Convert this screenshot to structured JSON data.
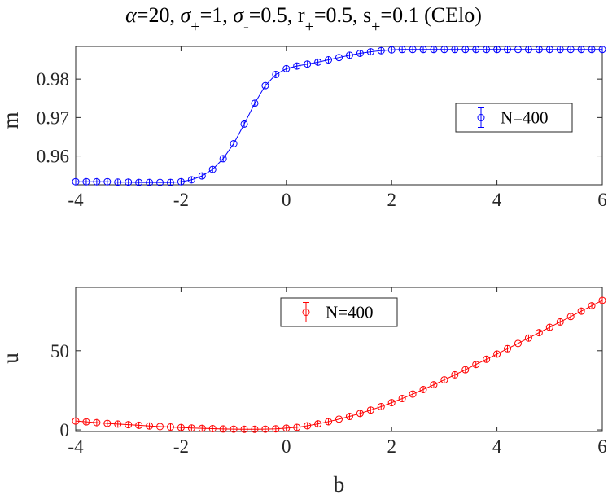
{
  "title": {
    "parts": [
      {
        "text": "α",
        "italic": true
      },
      {
        "text": "=20, "
      },
      {
        "text": "σ",
        "italic": true
      },
      {
        "text": "+",
        "sub": true
      },
      {
        "text": "=1, "
      },
      {
        "text": "σ",
        "italic": true
      },
      {
        "text": "-",
        "sub": true
      },
      {
        "text": "=0.5, r"
      },
      {
        "text": "+",
        "sub": true
      },
      {
        "text": "=0.5, s"
      },
      {
        "text": "+",
        "sub": true
      },
      {
        "text": "=0.1 (CElo)"
      }
    ]
  },
  "colors": {
    "series_top": "#0000ff",
    "series_bottom": "#ff0000",
    "axis": "#262626"
  },
  "chart_data": [
    {
      "type": "line",
      "title": "α=20, σ+=1, σ-=0.5, r+=0.5, s+=0.1 (CElo)",
      "xlabel": "",
      "ylabel": "m",
      "xlim": [
        -4,
        6
      ],
      "ylim": [
        0.9525,
        0.9885
      ],
      "xticks": [
        -4,
        -2,
        0,
        2,
        4,
        6
      ],
      "xtick_labels": [
        "-4",
        "-2",
        "0",
        "2",
        "4",
        "6"
      ],
      "yticks": [
        0.96,
        0.97,
        0.98
      ],
      "ytick_labels": [
        "0.96",
        "0.97",
        "0.98"
      ],
      "grid": false,
      "legend_position": "right",
      "marker": "circle",
      "error_bars": true,
      "x": [
        -4,
        -3.8,
        -3.6,
        -3.4,
        -3.2,
        -3,
        -2.8,
        -2.6,
        -2.4,
        -2.2,
        -2,
        -1.8,
        -1.6,
        -1.4,
        -1.2,
        -1,
        -0.8,
        -0.6,
        -0.4,
        -0.2,
        0,
        0.2,
        0.4,
        0.6,
        0.8,
        1,
        1.2,
        1.4,
        1.6,
        1.8,
        2,
        2.2,
        2.4,
        2.6,
        2.8,
        3,
        3.2,
        3.4,
        3.6,
        3.8,
        4,
        4.2,
        4.4,
        4.6,
        4.8,
        5,
        5.2,
        5.4,
        5.6,
        5.8,
        6
      ],
      "series": [
        {
          "name": "N=400",
          "values": [
            0.9533,
            0.9533,
            0.9533,
            0.9533,
            0.9532,
            0.9532,
            0.9531,
            0.9531,
            0.9531,
            0.9531,
            0.9533,
            0.9538,
            0.9548,
            0.9565,
            0.9593,
            0.9632,
            0.9683,
            0.9737,
            0.9783,
            0.9812,
            0.9827,
            0.9834,
            0.9839,
            0.9844,
            0.985,
            0.9856,
            0.9862,
            0.9867,
            0.9871,
            0.9874,
            0.9876,
            0.9877,
            0.9877,
            0.9877,
            0.9877,
            0.9877,
            0.9877,
            0.9877,
            0.9877,
            0.9877,
            0.9877,
            0.9877,
            0.9877,
            0.9877,
            0.9877,
            0.9877,
            0.9877,
            0.9877,
            0.9877,
            0.9877,
            0.9877
          ]
        }
      ]
    },
    {
      "type": "line",
      "title": "",
      "xlabel": "b",
      "ylabel": "u",
      "xlim": [
        -4,
        6
      ],
      "ylim": [
        -1,
        90
      ],
      "xticks": [
        -4,
        -2,
        0,
        2,
        4,
        6
      ],
      "xtick_labels": [
        "-4",
        "-2",
        "0",
        "2",
        "4",
        "6"
      ],
      "yticks": [
        0,
        50
      ],
      "ytick_labels": [
        "0",
        "50"
      ],
      "grid": false,
      "legend_position": "top-center",
      "marker": "circle",
      "error_bars": true,
      "x": [
        -4,
        -3.8,
        -3.6,
        -3.4,
        -3.2,
        -3,
        -2.8,
        -2.6,
        -2.4,
        -2.2,
        -2,
        -1.8,
        -1.6,
        -1.4,
        -1.2,
        -1,
        -0.8,
        -0.6,
        -0.4,
        -0.2,
        0,
        0.2,
        0.4,
        0.6,
        0.8,
        1,
        1.2,
        1.4,
        1.6,
        1.8,
        2,
        2.2,
        2.4,
        2.6,
        2.8,
        3,
        3.2,
        3.4,
        3.6,
        3.8,
        4,
        4.2,
        4.4,
        4.6,
        4.8,
        5,
        5.2,
        5.4,
        5.6,
        5.8,
        6
      ],
      "series": [
        {
          "name": "N=400",
          "values": [
            5.6,
            5.1,
            4.6,
            4.1,
            3.7,
            3.3,
            2.9,
            2.5,
            2.1,
            1.8,
            1.5,
            1.2,
            1.0,
            0.8,
            0.6,
            0.5,
            0.4,
            0.4,
            0.5,
            0.7,
            1.1,
            1.6,
            2.6,
            3.8,
            5.2,
            6.8,
            8.5,
            10.4,
            12.5,
            14.7,
            17.2,
            19.8,
            22.6,
            25.5,
            28.5,
            31.6,
            34.8,
            38.0,
            41.3,
            44.6,
            47.9,
            51.3,
            54.6,
            58.0,
            61.4,
            64.8,
            68.2,
            71.6,
            75.0,
            78.4,
            81.8
          ]
        }
      ]
    }
  ]
}
